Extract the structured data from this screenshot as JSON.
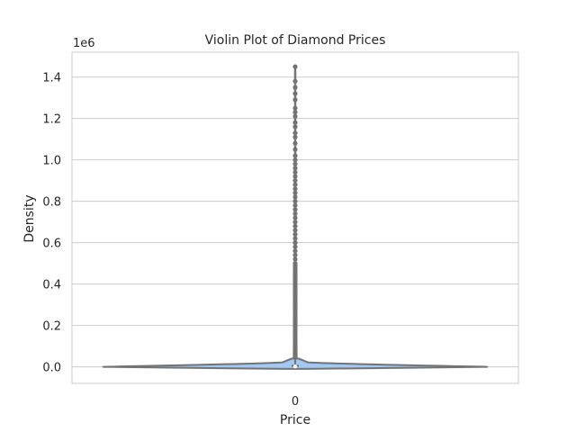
{
  "chart_data": {
    "type": "violin",
    "title": "Violin Plot of Diamond Prices",
    "xlabel": "Price",
    "ylabel": "Density",
    "scale_offset": "1e6",
    "categories": [
      "0"
    ],
    "ylim": [
      -80000,
      1520000
    ],
    "yticks": [
      0.0,
      0.2,
      0.4,
      0.6,
      0.8,
      1.0,
      1.2,
      1.4
    ],
    "ytick_labels": [
      "0.0",
      "0.2",
      "0.4",
      "0.6",
      "0.8",
      "1.0",
      "1.2",
      "1.4"
    ],
    "grid": true,
    "colors": {
      "fill": "#a1c9f4",
      "outline": "#737373",
      "grid": "#cccccc",
      "frame": "#cccccc",
      "text": "#262626"
    },
    "violin": {
      "center_y": 0,
      "half_width_category": 0.86,
      "top_y": 40000,
      "bottom_y": -10000
    },
    "box": {
      "q1": 0,
      "median": 2000,
      "q3": 10000,
      "whisker_low": 0,
      "whisker_high": 40000
    },
    "outliers": [
      45000,
      50000,
      55000,
      60000,
      65000,
      70000,
      75000,
      80000,
      85000,
      90000,
      95000,
      100000,
      110000,
      120000,
      130000,
      140000,
      150000,
      160000,
      170000,
      180000,
      190000,
      200000,
      210000,
      220000,
      230000,
      240000,
      250000,
      260000,
      270000,
      280000,
      290000,
      300000,
      310000,
      320000,
      330000,
      340000,
      350000,
      360000,
      370000,
      380000,
      390000,
      400000,
      410000,
      420000,
      430000,
      440000,
      450000,
      460000,
      470000,
      480000,
      490000,
      500000,
      520000,
      540000,
      560000,
      580000,
      600000,
      620000,
      640000,
      660000,
      680000,
      700000,
      720000,
      740000,
      760000,
      780000,
      800000,
      820000,
      840000,
      860000,
      880000,
      900000,
      920000,
      940000,
      960000,
      980000,
      1000000,
      1020000,
      1050000,
      1080000,
      1110000,
      1130000,
      1160000,
      1180000,
      1210000,
      1230000,
      1250000,
      1290000,
      1320000,
      1350000,
      1380000,
      1450000
    ]
  }
}
